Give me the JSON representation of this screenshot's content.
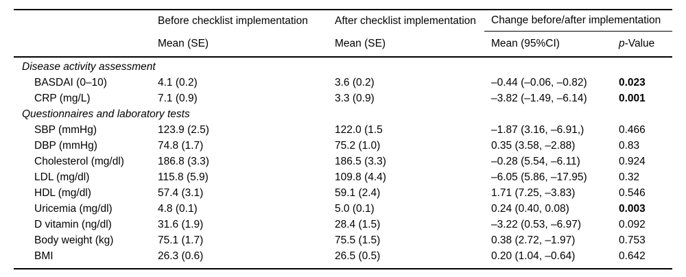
{
  "colors": {
    "text": "#000000",
    "background": "#ffffff",
    "rule": "#000000"
  },
  "table": {
    "header": {
      "before_group": "Before checklist implementation",
      "after_group": "After checklist implementation",
      "change_group": "Change before/after implementation",
      "before_sub": "Mean (SE)",
      "after_sub": "Mean (SE)",
      "change_sub": "Mean (95%CI)",
      "p_italic": "p",
      "p_rest": "-Value"
    },
    "sections": [
      {
        "title": "Disease activity assessment",
        "rows": [
          {
            "label": "BASDAI (0–10)",
            "before": "4.1 (0.2)",
            "after": "3.6 (0.2)",
            "change": "–0.44 (–0.06, –0.82)",
            "p": "0.023",
            "p_bold": true
          },
          {
            "label": "CRP (mg/L)",
            "before": "7.1 (0.9)",
            "after": "3.3 (0.9)",
            "change": "–3.82 (–1.49, –6.14)",
            "p": "0.001",
            "p_bold": true
          }
        ]
      },
      {
        "title": "Questionnaires and laboratory tests",
        "rows": [
          {
            "label": "SBP (mmHg)",
            "before": "123.9 (2.5)",
            "after": "122.0 (1.5",
            "change": "–1.87 (3.16, –6.91,)",
            "p": "0.466",
            "p_bold": false
          },
          {
            "label": "DBP (mmHg)",
            "before": "74.8 (1.7)",
            "after": "75.2 (1.0)",
            "change": "0.35 (3.58, –2.88)",
            "p": "0.83",
            "p_bold": false
          },
          {
            "label": "Cholesterol (mg/dl)",
            "before": "186.8 (3.3)",
            "after": "186.5 (3.3)",
            "change": "–0.28 (5.54, –6.11)",
            "p": "0.924",
            "p_bold": false
          },
          {
            "label": "LDL (mg/dl)",
            "before": "115.8 (5.9)",
            "after": "109.8 (4.4)",
            "change": "–6.05 (5.86, –17.95)",
            "p": "0.32",
            "p_bold": false
          },
          {
            "label": "HDL (mg/dl)",
            "before": "57.4 (3.1)",
            "after": "59.1 (2.4)",
            "change": "1.71 (7.25, –3.83)",
            "p": "0.546",
            "p_bold": false
          },
          {
            "label": "Uricemia (mg/dl)",
            "before": "4.8 (0.1)",
            "after": "5.0 (0.1)",
            "change": "0.24 (0.40, 0.08)",
            "p": "0.003",
            "p_bold": true
          },
          {
            "label": "D vitamin (ng/dl)",
            "before": "31.6 (1.9)",
            "after": "28.4 (1.5)",
            "change": "–3.22 (0.53, –6.97)",
            "p": "0.092",
            "p_bold": false
          },
          {
            "label": "Body weight (kg)",
            "before": "75.1 (1.7)",
            "after": "75.5 (1.5)",
            "change": "0.38 (2.72, –1.97)",
            "p": "0.753",
            "p_bold": false
          },
          {
            "label": "BMI",
            "before": "26.3 (0.6)",
            "after": "26.5 (0.5)",
            "change": "0.20 (1.04, –0.64)",
            "p": "0.642",
            "p_bold": false
          }
        ]
      }
    ]
  }
}
